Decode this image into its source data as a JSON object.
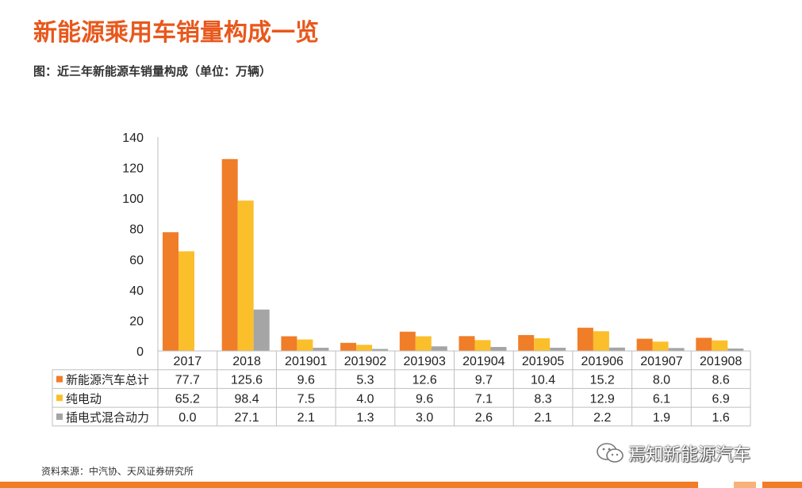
{
  "page": {
    "title": "新能源乘用车销量构成一览",
    "subtitle": "图：近三年新能源车销量构成（单位：万辆）",
    "source": "资料来源：中汽协、天风证券研究所",
    "watermark": "焉知新能源汽车",
    "watermark_icon": "wechat-icon"
  },
  "colors": {
    "title": "#e8581c",
    "accent_bar": "#f07d28",
    "series": [
      "#f07d28",
      "#fbbf2b",
      "#a5a5a5"
    ]
  },
  "chart_data": {
    "type": "bar",
    "categories": [
      "2017",
      "2018",
      "201901",
      "201902",
      "201903",
      "201904",
      "201905",
      "201906",
      "201907",
      "201908"
    ],
    "series": [
      {
        "name": "新能源汽车总计",
        "values": [
          77.7,
          125.6,
          9.6,
          5.3,
          12.6,
          9.7,
          10.4,
          15.2,
          8.0,
          8.6
        ]
      },
      {
        "name": "纯电动",
        "values": [
          65.2,
          98.4,
          7.5,
          4.0,
          9.6,
          7.1,
          8.3,
          12.9,
          6.1,
          6.9
        ]
      },
      {
        "name": "插电式混合动力",
        "values": [
          0.0,
          27.1,
          2.1,
          1.3,
          3.0,
          2.6,
          2.1,
          2.2,
          1.9,
          1.6
        ]
      }
    ],
    "table_values": [
      [
        "77.7",
        "125.6",
        "9.6",
        "5.3",
        "12.6",
        "9.7",
        "10.4",
        "15.2",
        "8.0",
        "8.6"
      ],
      [
        "65.2",
        "98.4",
        "7.5",
        "4.0",
        "9.6",
        "7.1",
        "8.3",
        "12.9",
        "6.1",
        "6.9"
      ],
      [
        "0.0",
        "27.1",
        "2.1",
        "1.3",
        "3.0",
        "2.6",
        "2.1",
        "2.2",
        "1.9",
        "1.6"
      ]
    ],
    "yticks": [
      "0",
      "20",
      "40",
      "60",
      "80",
      "100",
      "120",
      "140"
    ],
    "ylim": [
      0,
      140
    ],
    "legend": "data-table",
    "grid": false
  }
}
